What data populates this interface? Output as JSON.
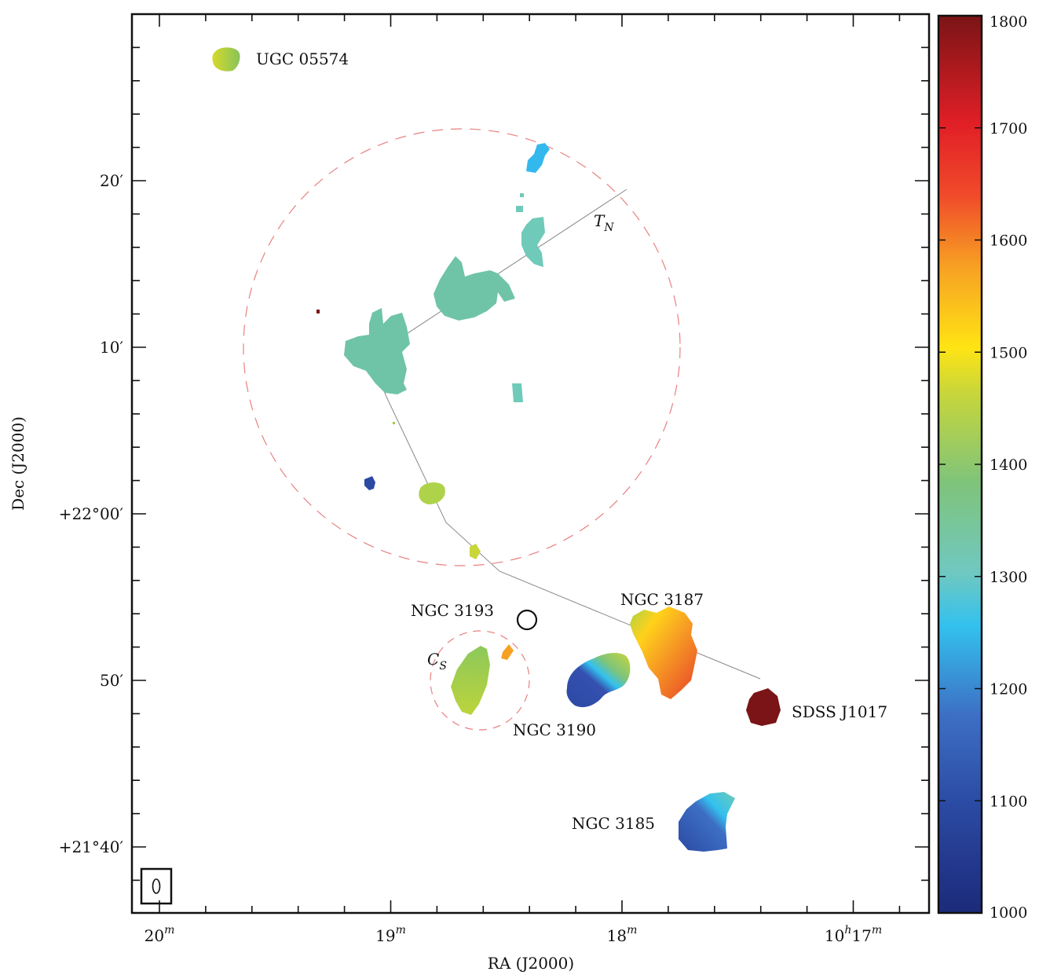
{
  "chart_data": {
    "type": "heatmap",
    "xlabel": "RA (J2000)",
    "ylabel": "Dec (J2000)",
    "x_ticks": [
      {
        "label": "20",
        "sup": "m"
      },
      {
        "label": "19",
        "sup": "m"
      },
      {
        "label": "18",
        "sup": "m"
      },
      {
        "label": "10",
        "sup": "h",
        "label2": "17",
        "sup2": "m"
      }
    ],
    "y_ticks": [
      {
        "label": "20′",
        "dec": 20
      },
      {
        "label": "10′",
        "dec": 10
      },
      {
        "label": "+22°00′",
        "dec": 0
      },
      {
        "label": "50′",
        "dec": -10
      },
      {
        "label": "+21°40′",
        "dec": -20
      }
    ],
    "colorbar": {
      "min": 1000,
      "max": 1800,
      "ticks": [
        "1000",
        "1100",
        "1200",
        "1300",
        "1400",
        "1500",
        "1600",
        "1700",
        "1800"
      ]
    },
    "labels": {
      "ugc": "UGC 05574",
      "tn_main": "T",
      "tn_sub": "N",
      "ngc3193": "NGC 3193",
      "ngc3187": "NGC 3187",
      "cs_main": "C",
      "cs_sub": "S",
      "ngc3190": "NGC 3190",
      "sdss": "SDSS J1017",
      "ngc3185": "NGC 3185"
    },
    "sources": [
      {
        "name": "UGC 05574",
        "velocity": 1450
      },
      {
        "name": "NGC 3187",
        "velocity_range": [
          1400,
          1650
        ]
      },
      {
        "name": "NGC 3190",
        "velocity_range": [
          1100,
          1450
        ]
      },
      {
        "name": "SDSS J1017",
        "velocity": 1800
      },
      {
        "name": "NGC 3185",
        "velocity_range": [
          1100,
          1300
        ]
      }
    ],
    "colors": {
      "dashed_circle": "#e88080",
      "track_line": "#888888"
    }
  }
}
